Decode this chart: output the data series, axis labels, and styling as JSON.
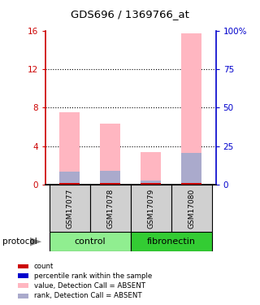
{
  "title": "GDS696 / 1369766_at",
  "samples": [
    "GSM17077",
    "GSM17078",
    "GSM17079",
    "GSM17080"
  ],
  "value_absent": [
    7.5,
    6.3,
    3.4,
    15.7
  ],
  "rank_absent": [
    1.3,
    1.4,
    0.4,
    3.3
  ],
  "count_red": [
    0.12,
    0.12,
    0.12,
    0.12
  ],
  "ylim_left": [
    0,
    16
  ],
  "ylim_right": [
    0,
    100
  ],
  "yticks_left": [
    0,
    4,
    8,
    12,
    16
  ],
  "yticks_right": [
    0,
    25,
    50,
    75,
    100
  ],
  "yticklabels_right": [
    "0",
    "25",
    "50",
    "75",
    "100%"
  ],
  "bar_width": 0.5,
  "color_pink": "#FFB6C1",
  "color_light_blue": "#AAAACC",
  "color_red": "#CC0000",
  "color_blue": "#0000CC",
  "color_left_axis": "#CC0000",
  "color_right_axis": "#0000CC",
  "control_color": "#90EE90",
  "fibronectin_color": "#33CC33",
  "sample_box_color": "#D0D0D0",
  "legend_items": [
    [
      "#CC0000",
      "count"
    ],
    [
      "#0000CC",
      "percentile rank within the sample"
    ],
    [
      "#FFB6C1",
      "value, Detection Call = ABSENT"
    ],
    [
      "#AAAACC",
      "rank, Detection Call = ABSENT"
    ]
  ]
}
